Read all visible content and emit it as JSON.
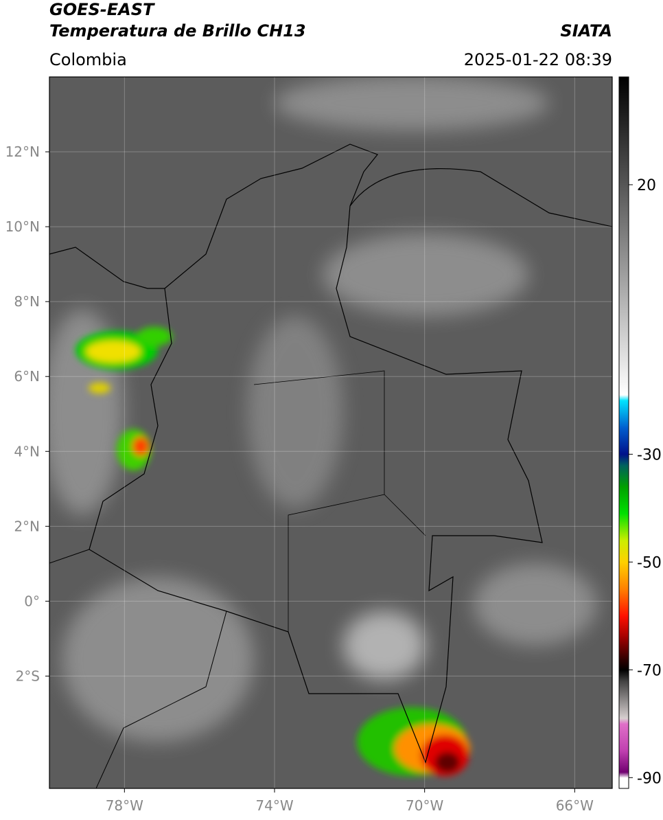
{
  "header": {
    "title": "GOES-EAST",
    "subtitle": "Temperatura de Brillo CH13",
    "source": "SIATA",
    "region": "Colombia",
    "datetime": "2025-01-22 08:39"
  },
  "map": {
    "xlim": [
      -80,
      -65
    ],
    "ylim": [
      -5,
      14
    ],
    "xticks": [
      {
        "value": -78,
        "label": "78°W"
      },
      {
        "value": -74,
        "label": "74°W"
      },
      {
        "value": -70,
        "label": "70°W"
      },
      {
        "value": -66,
        "label": "66°W"
      }
    ],
    "yticks": [
      {
        "value": 12,
        "label": "12°N"
      },
      {
        "value": 10,
        "label": "10°N"
      },
      {
        "value": 8,
        "label": "8°N"
      },
      {
        "value": 6,
        "label": "6°N"
      },
      {
        "value": 4,
        "label": "4°N"
      },
      {
        "value": 2,
        "label": "2°N"
      },
      {
        "value": 0,
        "label": "0°"
      },
      {
        "value": -2,
        "label": "2°S"
      }
    ],
    "grid": true
  },
  "colorbar": {
    "lim": [
      -92,
      40
    ],
    "ticks": [
      20,
      -30,
      -50,
      -70,
      -90
    ],
    "colormap": [
      {
        "value": 40,
        "color": "#000000"
      },
      {
        "value": -19,
        "color": "#ffffff"
      },
      {
        "value": -20,
        "color": "#00e5ff"
      },
      {
        "value": -25,
        "color": "#0060d0"
      },
      {
        "value": -30,
        "color": "#00108a"
      },
      {
        "value": -32,
        "color": "#006060"
      },
      {
        "value": -36,
        "color": "#00a000"
      },
      {
        "value": -41,
        "color": "#00e000"
      },
      {
        "value": -46,
        "color": "#ccee00"
      },
      {
        "value": -50,
        "color": "#ffd000"
      },
      {
        "value": -55,
        "color": "#ff8000"
      },
      {
        "value": -60,
        "color": "#ff1000"
      },
      {
        "value": -64,
        "color": "#a00000"
      },
      {
        "value": -68,
        "color": "#300000"
      },
      {
        "value": -70,
        "color": "#000000"
      },
      {
        "value": -72,
        "color": "#404040"
      },
      {
        "value": -79,
        "color": "#d8d0d0"
      },
      {
        "value": -80,
        "color": "#e070c8"
      },
      {
        "value": -85,
        "color": "#c040b0"
      },
      {
        "value": -89,
        "color": "#700070"
      },
      {
        "value": -90,
        "color": "#ffffff"
      },
      {
        "value": -92,
        "color": "#ffffff"
      }
    ]
  }
}
